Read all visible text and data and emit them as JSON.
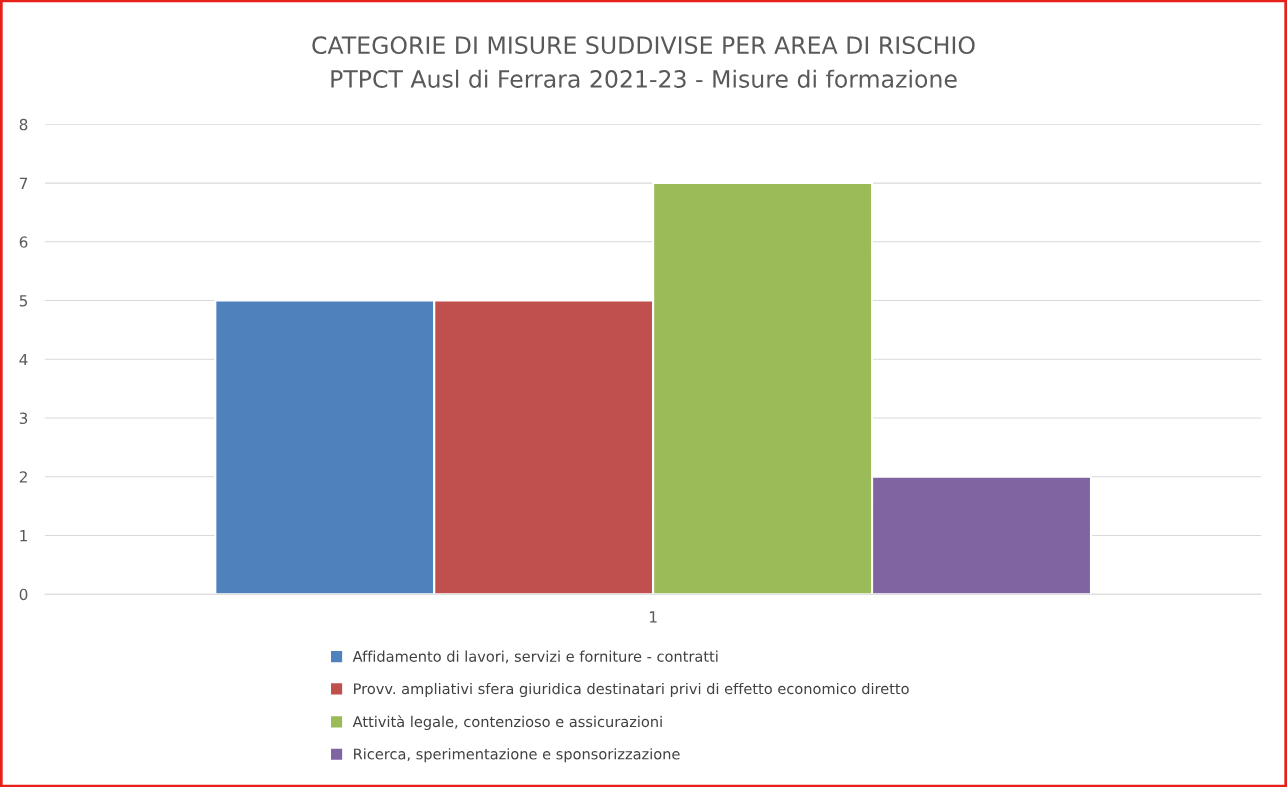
{
  "chart_data": {
    "type": "bar",
    "title": "CATEGORIE DI MISURE SUDDIVISE PER AREA DI RISCHIO",
    "subtitle": "PTPCT Ausl di Ferrara 2021-23 - Misure di formazione",
    "categories": [
      "1"
    ],
    "series": [
      {
        "name": "Affidamento di lavori, servizi e forniture - contratti",
        "color": "#4f81bd",
        "values": [
          5
        ]
      },
      {
        "name": "Provv. ampliativi sfera giuridica destinatari privi di effetto economico diretto",
        "color": "#c0504d",
        "values": [
          5
        ]
      },
      {
        "name": "Attività legale, contenzioso e assicurazioni",
        "color": "#9bbb59",
        "values": [
          7
        ]
      },
      {
        "name": "Ricerca, sperimentazione e sponsorizzazione",
        "color": "#8064a2",
        "values": [
          2
        ]
      }
    ],
    "ylim": [
      0,
      8
    ],
    "yticks": [
      0,
      1,
      2,
      3,
      4,
      5,
      6,
      7,
      8
    ],
    "grid": "y",
    "legend": "bottom"
  }
}
